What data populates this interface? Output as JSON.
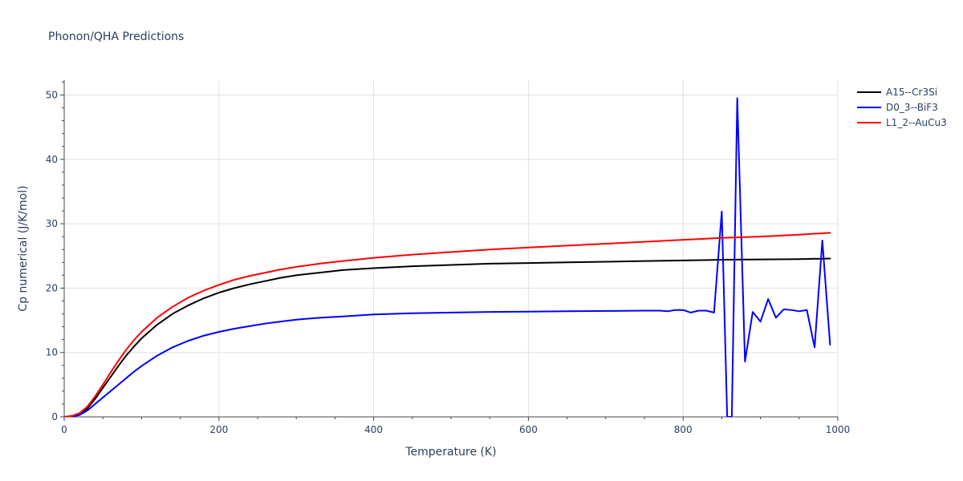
{
  "chart_data": {
    "type": "line",
    "title": "Phonon/QHA Predictions",
    "xlabel": "Temperature (K)",
    "ylabel": "Cp numerical (J/K/mol)",
    "xlim": [
      0,
      1000
    ],
    "ylim": [
      0,
      52.3
    ],
    "x_ticks": [
      0,
      200,
      400,
      600,
      800,
      1000
    ],
    "y_ticks": [
      0,
      10,
      20,
      30,
      40,
      50
    ],
    "grid": true,
    "legend_position": "top-right",
    "series": [
      {
        "name": "A15--Cr3Si",
        "color": "#000000",
        "x": [
          0,
          10,
          20,
          30,
          40,
          50,
          60,
          70,
          80,
          90,
          100,
          120,
          140,
          160,
          180,
          200,
          220,
          240,
          260,
          280,
          300,
          330,
          360,
          400,
          450,
          500,
          550,
          600,
          650,
          700,
          750,
          800,
          850,
          900,
          950,
          990
        ],
        "y": [
          0,
          0.1,
          0.4,
          1.3,
          2.8,
          4.5,
          6.2,
          7.9,
          9.5,
          10.9,
          12.2,
          14.3,
          16.0,
          17.3,
          18.4,
          19.3,
          20.0,
          20.6,
          21.1,
          21.6,
          22.0,
          22.4,
          22.8,
          23.1,
          23.4,
          23.6,
          23.8,
          23.9,
          24.0,
          24.1,
          24.2,
          24.3,
          24.4,
          24.45,
          24.5,
          24.6
        ]
      },
      {
        "name": "D0_3--BiF3",
        "color": "#0000ff",
        "x": [
          0,
          10,
          20,
          30,
          40,
          50,
          60,
          70,
          80,
          90,
          100,
          120,
          140,
          160,
          180,
          200,
          220,
          240,
          260,
          280,
          300,
          330,
          360,
          400,
          450,
          500,
          550,
          600,
          650,
          700,
          750,
          770,
          780,
          790,
          800,
          810,
          820,
          830,
          840,
          850,
          857,
          863,
          870,
          880,
          890,
          900,
          910,
          920,
          930,
          940,
          950,
          960,
          970,
          980,
          990
        ],
        "y": [
          0,
          0.05,
          0.3,
          1.0,
          2.0,
          3.0,
          4.0,
          5.0,
          6.0,
          7.0,
          7.9,
          9.5,
          10.8,
          11.8,
          12.6,
          13.2,
          13.7,
          14.1,
          14.5,
          14.8,
          15.1,
          15.4,
          15.6,
          15.9,
          16.1,
          16.2,
          16.3,
          16.35,
          16.4,
          16.45,
          16.5,
          16.5,
          16.4,
          16.6,
          16.6,
          16.2,
          16.5,
          16.5,
          16.2,
          31.9,
          0,
          0,
          49.5,
          8.6,
          16.3,
          14.8,
          18.3,
          15.4,
          16.7,
          16.6,
          16.4,
          16.6,
          10.8,
          27.4,
          11.2
        ]
      },
      {
        "name": "L1_2--AuCu3",
        "color": "#ff0000",
        "x": [
          0,
          10,
          20,
          30,
          40,
          50,
          60,
          70,
          80,
          90,
          100,
          120,
          140,
          160,
          180,
          200,
          220,
          240,
          260,
          280,
          300,
          330,
          360,
          400,
          450,
          500,
          550,
          600,
          650,
          700,
          750,
          800,
          850,
          900,
          950,
          990
        ],
        "y": [
          0,
          0.15,
          0.6,
          1.6,
          3.2,
          5.0,
          6.9,
          8.7,
          10.4,
          11.9,
          13.2,
          15.4,
          17.1,
          18.5,
          19.6,
          20.5,
          21.3,
          21.9,
          22.4,
          22.9,
          23.3,
          23.8,
          24.2,
          24.7,
          25.2,
          25.6,
          26.0,
          26.3,
          26.6,
          26.9,
          27.2,
          27.5,
          27.8,
          28.0,
          28.3,
          28.6
        ]
      }
    ]
  }
}
